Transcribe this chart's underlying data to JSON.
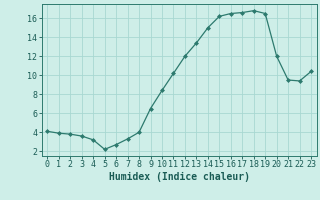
{
  "x": [
    0,
    1,
    2,
    3,
    4,
    5,
    6,
    7,
    8,
    9,
    10,
    11,
    12,
    13,
    14,
    15,
    16,
    17,
    18,
    19,
    20,
    21,
    22,
    23
  ],
  "y": [
    4.1,
    3.9,
    3.8,
    3.6,
    3.2,
    2.2,
    2.7,
    3.3,
    4.0,
    6.5,
    8.4,
    10.2,
    12.0,
    13.4,
    15.0,
    16.2,
    16.5,
    16.6,
    16.8,
    16.5,
    12.0,
    9.5,
    9.4,
    10.4
  ],
  "line_color": "#2d7a6e",
  "marker": "D",
  "marker_size": 2,
  "bg_color": "#ceeee8",
  "grid_color": "#a8d8d2",
  "xlabel": "Humidex (Indice chaleur)",
  "xlim": [
    -0.5,
    23.5
  ],
  "ylim": [
    1.5,
    17.5
  ],
  "xtick_labels": [
    "0",
    "1",
    "2",
    "3",
    "4",
    "5",
    "6",
    "7",
    "8",
    "9",
    "10",
    "11",
    "12",
    "13",
    "14",
    "15",
    "16",
    "17",
    "18",
    "19",
    "20",
    "21",
    "22",
    "23"
  ],
  "ytick_values": [
    2,
    4,
    6,
    8,
    10,
    12,
    14,
    16
  ],
  "font_color": "#1a5c55",
  "xlabel_fontsize": 7,
  "tick_fontsize": 6
}
